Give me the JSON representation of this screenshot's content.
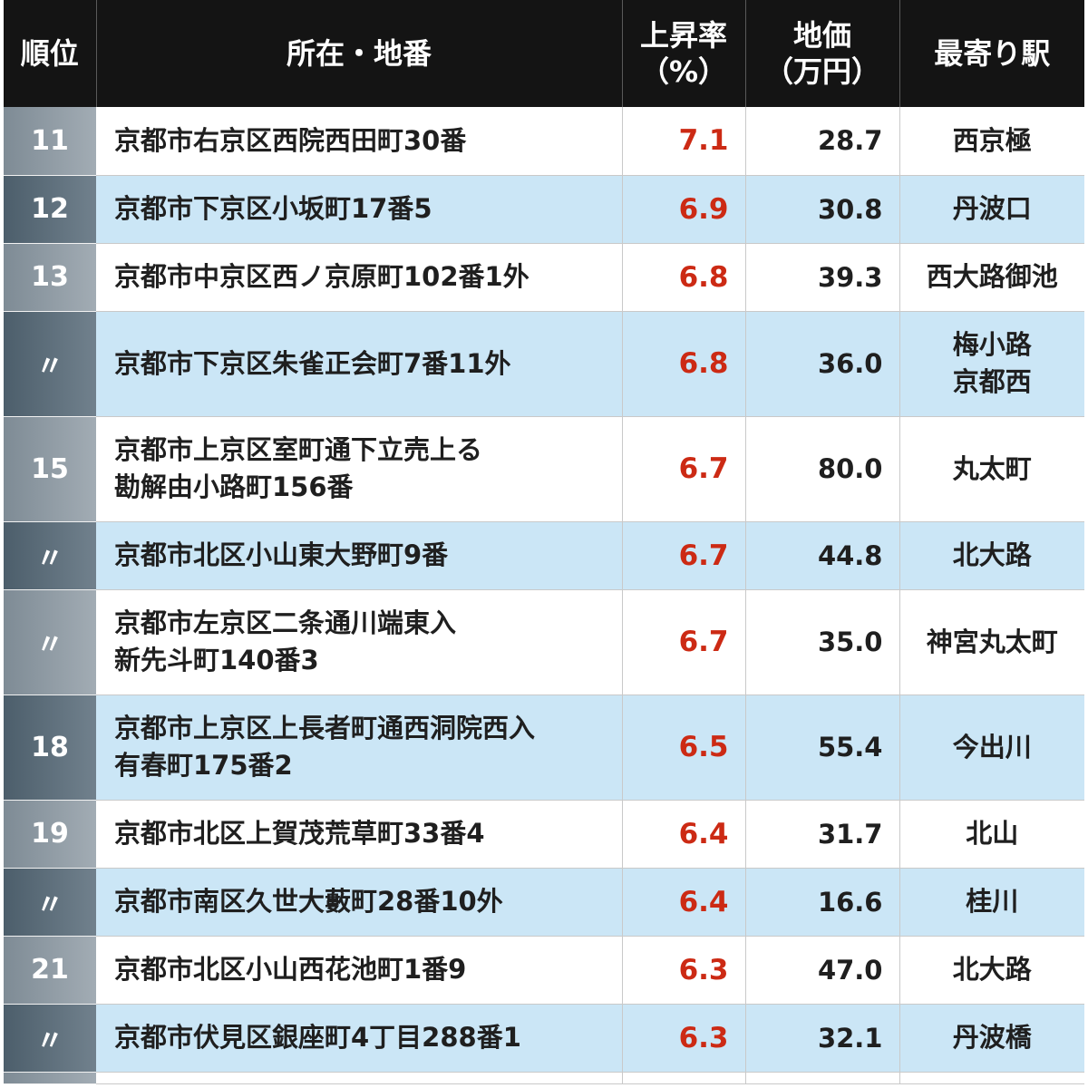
{
  "headers": {
    "rank": "順位",
    "address": "所在・地番",
    "rate_line1": "上昇率",
    "rate_line2": "（%）",
    "price_line1": "地価",
    "price_line2": "（万円）",
    "station": "最寄り駅"
  },
  "rows": [
    {
      "rank": "11",
      "address": [
        "京都市右京区西院西田町30番"
      ],
      "rate": "7.1",
      "price": "28.7",
      "station": [
        "西京極"
      ],
      "style": "light"
    },
    {
      "rank": "12",
      "address": [
        "京都市下京区小坂町17番5"
      ],
      "rate": "6.9",
      "price": "30.8",
      "station": [
        "丹波口"
      ],
      "style": "blue"
    },
    {
      "rank": "13",
      "address": [
        "京都市中京区西ノ京原町102番1外"
      ],
      "rate": "6.8",
      "price": "39.3",
      "station": [
        "西大路御池"
      ],
      "style": "light"
    },
    {
      "rank": "〃",
      "address": [
        "京都市下京区朱雀正会町7番11外"
      ],
      "rate": "6.8",
      "price": "36.0",
      "station": [
        "梅小路",
        "京都西"
      ],
      "style": "blue"
    },
    {
      "rank": "15",
      "address": [
        "京都市上京区室町通下立売上る",
        "勘解由小路町156番"
      ],
      "rate": "6.7",
      "price": "80.0",
      "station": [
        "丸太町"
      ],
      "style": "light"
    },
    {
      "rank": "〃",
      "address": [
        "京都市北区小山東大野町9番"
      ],
      "rate": "6.7",
      "price": "44.8",
      "station": [
        "北大路"
      ],
      "style": "blue"
    },
    {
      "rank": "〃",
      "address": [
        "京都市左京区二条通川端東入",
        "新先斗町140番3"
      ],
      "rate": "6.7",
      "price": "35.0",
      "station": [
        "神宮丸太町"
      ],
      "style": "light"
    },
    {
      "rank": "18",
      "address": [
        "京都市上京区上長者町通西洞院西入",
        "有春町175番2"
      ],
      "rate": "6.5",
      "price": "55.4",
      "station": [
        "今出川"
      ],
      "style": "blue"
    },
    {
      "rank": "19",
      "address": [
        "京都市北区上賀茂荒草町33番4"
      ],
      "rate": "6.4",
      "price": "31.7",
      "station": [
        "北山"
      ],
      "style": "light"
    },
    {
      "rank": "〃",
      "address": [
        "京都市南区久世大藪町28番10外"
      ],
      "rate": "6.4",
      "price": "16.6",
      "station": [
        "桂川"
      ],
      "style": "blue"
    },
    {
      "rank": "21",
      "address": [
        "京都市北区小山西花池町1番9"
      ],
      "rate": "6.3",
      "price": "47.0",
      "station": [
        "北大路"
      ],
      "style": "light"
    },
    {
      "rank": "〃",
      "address": [
        "京都市伏見区銀座町4丁目288番1"
      ],
      "rate": "6.3",
      "price": "32.1",
      "station": [
        "丹波橋"
      ],
      "style": "blue"
    }
  ]
}
